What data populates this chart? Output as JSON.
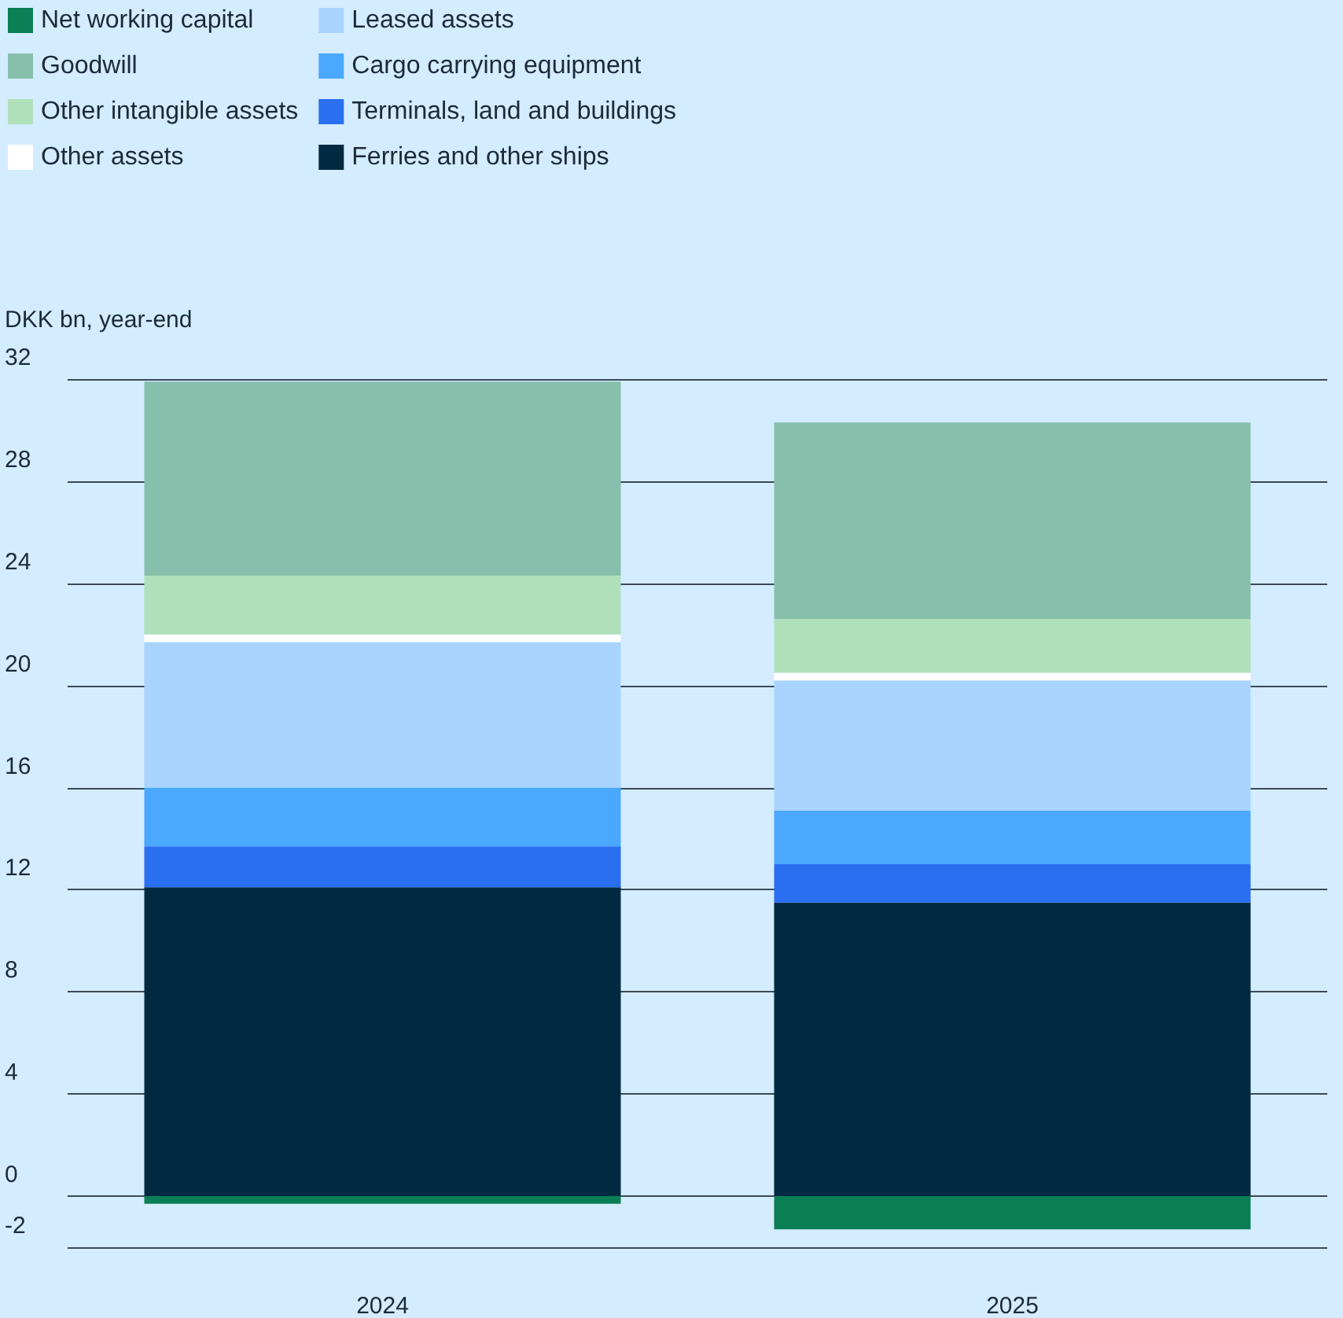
{
  "chart_data": {
    "type": "bar",
    "stacked": true,
    "ylabel": "DKK bn, year-end",
    "categories": [
      "2024",
      "2025"
    ],
    "series": [
      {
        "name": "Net working capital",
        "color": "#0a7f55",
        "values": [
          -0.3,
          -1.3
        ]
      },
      {
        "name": "Ferries and other ships",
        "color": "#002a40",
        "values": [
          12.1,
          11.5
        ]
      },
      {
        "name": "Terminals, land and buildings",
        "color": "#2a6ff0",
        "values": [
          1.6,
          1.5
        ]
      },
      {
        "name": "Cargo carrying equipment",
        "color": "#4aa8ff",
        "values": [
          2.3,
          2.1
        ]
      },
      {
        "name": "Leased assets",
        "color": "#a8d4ff",
        "values": [
          5.7,
          5.1
        ]
      },
      {
        "name": "Other assets",
        "color": "#ffffff",
        "values": [
          0.3,
          0.3
        ]
      },
      {
        "name": "Other intangible assets",
        "color": "#b0e0b9",
        "values": [
          2.3,
          2.1
        ]
      },
      {
        "name": "Goodwill",
        "color": "#86c0ad",
        "values": [
          7.6,
          7.7
        ]
      }
    ],
    "ylim": [
      -2,
      32
    ],
    "yticks": [
      -2,
      0,
      4,
      8,
      12,
      16,
      20,
      24,
      28,
      32
    ],
    "grid": "y",
    "legend": "top left"
  }
}
